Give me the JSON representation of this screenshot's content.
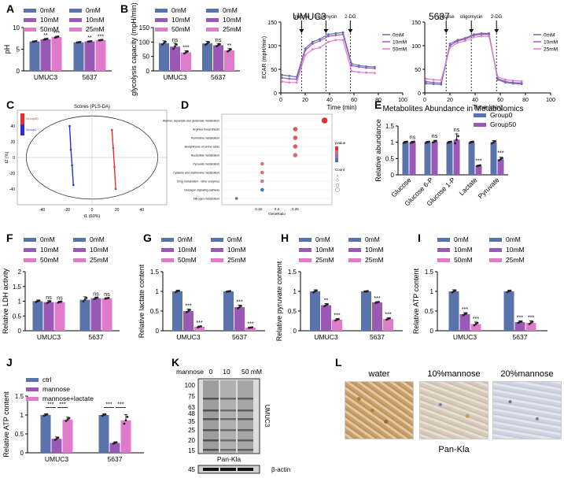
{
  "colors": {
    "c1": "#5a73ad",
    "c2": "#9b59b6",
    "c3": "#e07bcc",
    "g0": "#5a73ad",
    "g50": "#9b59b6",
    "red": "#e0312f",
    "blue": "#2b2bd8"
  },
  "panels": {
    "A": {
      "letter": "A"
    },
    "B": {
      "letter": "B"
    },
    "C": {
      "letter": "C",
      "title": "Scores (PLS-DA)"
    },
    "D": {
      "letter": "D"
    },
    "E": {
      "letter": "E"
    },
    "F": {
      "letter": "F"
    },
    "G": {
      "letter": "G"
    },
    "H": {
      "letter": "H"
    },
    "I": {
      "letter": "I"
    },
    "J": {
      "letter": "J"
    },
    "K": {
      "letter": "K"
    },
    "L": {
      "letter": "L"
    }
  },
  "chart_data": [
    {
      "id": "A",
      "type": "bar",
      "categories": [
        "UMUC3",
        "5637"
      ],
      "legend_left": [
        "0mM",
        "10mM",
        "50mM"
      ],
      "legend_right": [
        "0mM",
        "10mM",
        "25mM"
      ],
      "series": [
        {
          "values": [
            6.8,
            6.6
          ]
        },
        {
          "values": [
            7.3,
            6.8
          ]
        },
        {
          "values": [
            7.8,
            7.1
          ]
        }
      ],
      "errors": [
        [
          0.1,
          0.1
        ],
        [
          0.2,
          0.1
        ],
        [
          0.2,
          0.1
        ]
      ],
      "sig": [
        [
          "",
          ""
        ],
        [
          "**",
          "**"
        ],
        [
          "***",
          "***"
        ]
      ],
      "ylabel": "pH",
      "ylim": [
        0,
        10
      ],
      "yticks": [
        0,
        5,
        10
      ]
    },
    {
      "id": "B",
      "type": "bar",
      "categories": [
        "UMUC3",
        "5637"
      ],
      "legend_left": [
        "0mM",
        "10mM",
        "50mM"
      ],
      "legend_right": [
        "0mM",
        "10mM",
        "25mM"
      ],
      "series": [
        {
          "values": [
            96,
            95
          ]
        },
        {
          "values": [
            84,
            89
          ]
        },
        {
          "values": [
            64,
            71
          ]
        }
      ],
      "errors": [
        [
          8,
          7
        ],
        [
          12,
          6
        ],
        [
          6,
          6
        ]
      ],
      "sig": [
        [
          "",
          ""
        ],
        [
          "ns",
          "ns"
        ],
        [
          "***",
          "**"
        ]
      ],
      "ylabel": "glycolysis capacity (mpH/min)",
      "ylim": [
        0,
        150
      ],
      "yticks": [
        0,
        50,
        100,
        150
      ]
    },
    {
      "id": "ECAR1",
      "type": "line",
      "title": "UMUC3",
      "xlabel": "Time (min)",
      "ylabel": "ECAR (mpH/min)",
      "xlim": [
        0,
        100
      ],
      "ylim": [
        0,
        150
      ],
      "xticks": [
        0,
        20,
        40,
        60,
        80,
        100
      ],
      "yticks": [
        0,
        50,
        100,
        150
      ],
      "injections": [
        {
          "label": "glucose",
          "x": 17
        },
        {
          "label": "oligomycin",
          "x": 37
        },
        {
          "label": "2-DG",
          "x": 57
        }
      ],
      "legend": [
        "0mM",
        "10mM",
        "50mM"
      ],
      "x": [
        1,
        7,
        13,
        20,
        26,
        32,
        39,
        45,
        51,
        58,
        64,
        70,
        77
      ],
      "series": [
        {
          "values": [
            38,
            36,
            34,
            94,
            108,
            114,
            124,
            126,
            128,
            62,
            58,
            56,
            55
          ]
        },
        {
          "values": [
            32,
            30,
            29,
            90,
            104,
            110,
            120,
            122,
            124,
            58,
            55,
            53,
            52
          ]
        },
        {
          "values": [
            24,
            22,
            22,
            80,
            92,
            96,
            108,
            112,
            112,
            46,
            44,
            43,
            42
          ]
        }
      ]
    },
    {
      "id": "ECAR2",
      "type": "line",
      "title": "5637",
      "xlabel": "Time (min)",
      "ylabel": "",
      "xlim": [
        0,
        100
      ],
      "ylim": [
        0,
        150
      ],
      "xticks": [
        0,
        20,
        40,
        60,
        80,
        100
      ],
      "yticks": [
        0,
        50,
        100,
        150
      ],
      "injections": [
        {
          "label": "glucose",
          "x": 17
        },
        {
          "label": "oligomycin",
          "x": 37
        },
        {
          "label": "2-DG",
          "x": 57
        }
      ],
      "legend": [
        "0mM",
        "10mM",
        "25mM"
      ],
      "x": [
        1,
        7,
        13,
        20,
        26,
        32,
        39,
        45,
        51,
        58,
        64,
        70,
        77
      ],
      "series": [
        {
          "values": [
            20,
            19,
            18,
            100,
            110,
            114,
            122,
            124,
            124,
            28,
            22,
            20,
            19
          ]
        },
        {
          "values": [
            24,
            22,
            21,
            104,
            112,
            116,
            124,
            126,
            126,
            30,
            24,
            22,
            21
          ]
        },
        {
          "values": [
            30,
            28,
            27,
            96,
            106,
            110,
            118,
            120,
            120,
            34,
            28,
            26,
            25
          ]
        }
      ]
    },
    {
      "id": "C",
      "type": "scatter",
      "title": "Scores (PLS-DA)",
      "xlabel": "t1 (60%)",
      "ylabel": "t2 (%)",
      "xlim": [
        -60,
        60
      ],
      "ylim": [
        -60,
        60
      ],
      "xticks": [
        -40,
        -20,
        0,
        20,
        40
      ],
      "yticks": [
        -40,
        -20,
        0,
        20,
        40
      ],
      "legend": [
        "Group0",
        "Group50"
      ],
      "groups": [
        {
          "x": [
            -18,
            -17,
            -16,
            -15
          ],
          "y": [
            40,
            10,
            -10,
            -35
          ]
        },
        {
          "x": [
            16,
            17,
            18,
            19
          ],
          "y": [
            35,
            12,
            -12,
            -40
          ]
        }
      ]
    },
    {
      "id": "D",
      "type": "scatter",
      "xlabel": "GeneRatio",
      "pathways": [
        "Alanine, aspartate and glutamate metabolism",
        "Arginine biosynthesis",
        "Pyrimidine metabolism",
        "Biosynthesis of amino acids",
        "Nucleotide metabolism",
        "Pyruvate metabolism",
        "Cysteine and methionine metabolism",
        "Drug metabolism - other enzymes",
        "Glucagon signaling pathway",
        "Nitrogen metabolism"
      ],
      "x": [
        0.33,
        0.25,
        0.25,
        0.25,
        0.25,
        0.16,
        0.16,
        0.16,
        0.16,
        0.09
      ],
      "sizes": [
        3,
        2,
        2,
        2,
        2,
        1.5,
        1.5,
        1.5,
        1.5,
        1
      ],
      "colors": [
        "#e0312f",
        "#e05555",
        "#e05a5a",
        "#e06060",
        "#e06a6a",
        "#d97070",
        "#cf7575",
        "#c47b7b",
        "#4a72c4",
        "#6e6e6e"
      ],
      "xlim": [
        0.05,
        0.35
      ],
      "xticks": [
        0.15,
        0.2,
        0.25
      ],
      "legend_title_1": "pvalue",
      "legend_title_2": "Count"
    },
    {
      "id": "E",
      "type": "bar",
      "title": "Metabolites Abundance in Metabolomics",
      "categories": [
        "Glucose",
        "Glucose 6-P",
        "Glucose 1-P",
        "Lactate",
        "Pyruvate"
      ],
      "legend": [
        "Group0",
        "Group50"
      ],
      "series": [
        {
          "values": [
            1.0,
            1.0,
            1.0,
            1.0,
            1.0
          ]
        },
        {
          "values": [
            1.0,
            1.02,
            1.08,
            0.28,
            0.48
          ]
        }
      ],
      "errors": [
        [
          0.03,
          0.03,
          0.03,
          0.03,
          0.05
        ],
        [
          0.03,
          0.04,
          0.18,
          0.02,
          0.06
        ]
      ],
      "sig": [
        "ns",
        "ns",
        "ns",
        "***",
        "***"
      ],
      "ylabel": "Relative abundance",
      "ylim": [
        0,
        1.5
      ],
      "yticks": [
        0.0,
        0.5,
        1.0,
        1.5
      ]
    },
    {
      "id": "F",
      "type": "bar",
      "categories": [
        "UMUC3",
        "5637"
      ],
      "legend_left": [
        "0mM",
        "10mM",
        "50mM"
      ],
      "legend_right": [
        "0mM",
        "10mM",
        "25mM"
      ],
      "series": [
        {
          "values": [
            1.0,
            1.05
          ]
        },
        {
          "values": [
            0.97,
            1.1
          ]
        },
        {
          "values": [
            0.97,
            1.1
          ]
        }
      ],
      "errors": [
        [
          0.04,
          0.1
        ],
        [
          0.05,
          0.04
        ],
        [
          0.03,
          0.02
        ]
      ],
      "sig": [
        [
          "",
          ""
        ],
        [
          "ns",
          "ns"
        ],
        [
          "ns",
          "ns"
        ]
      ],
      "ylabel": "Relative LDH activity",
      "ylim": [
        0,
        2.0
      ],
      "yticks": [
        0.0,
        0.5,
        1.0,
        1.5,
        2.0
      ]
    },
    {
      "id": "G",
      "type": "bar",
      "categories": [
        "UMUC3",
        "5637"
      ],
      "legend_left": [
        "0mM",
        "10mM",
        "50mM"
      ],
      "legend_right": [
        "0mM",
        "10mM",
        "25mM"
      ],
      "series": [
        {
          "values": [
            1.0,
            1.0
          ]
        },
        {
          "values": [
            0.5,
            0.6
          ]
        },
        {
          "values": [
            0.1,
            0.08
          ]
        }
      ],
      "errors": [
        [
          0.03,
          0.01
        ],
        [
          0.05,
          0.05
        ],
        [
          0.02,
          0.01
        ]
      ],
      "sig": [
        [
          "",
          ""
        ],
        [
          "***",
          "***"
        ],
        [
          "***",
          "***"
        ]
      ],
      "ylabel": "Relative lactate content",
      "ylim": [
        0,
        1.5
      ],
      "yticks": [
        0.0,
        0.5,
        1.0,
        1.5
      ]
    },
    {
      "id": "H",
      "type": "bar",
      "categories": [
        "UMUC3",
        "5637"
      ],
      "legend_left": [
        "0mM",
        "10mM",
        "25mM"
      ],
      "legend_right": [
        "0mM",
        "10mM",
        "25mM"
      ],
      "series": [
        {
          "values": [
            1.0,
            1.0
          ]
        },
        {
          "values": [
            0.65,
            0.72
          ]
        },
        {
          "values": [
            0.28,
            0.3
          ]
        }
      ],
      "errors": [
        [
          0.04,
          0.01
        ],
        [
          0.04,
          0.02
        ],
        [
          0.03,
          0.03
        ]
      ],
      "sig": [
        [
          "",
          ""
        ],
        [
          "**",
          "***"
        ],
        [
          "***",
          "***"
        ]
      ],
      "ylabel": "Relative pyruvate content",
      "ylim": [
        0,
        1.5
      ],
      "yticks": [
        0.0,
        0.5,
        1.0,
        1.5
      ]
    },
    {
      "id": "I",
      "type": "bar",
      "categories": [
        "UMUC3",
        "5637"
      ],
      "legend_left": [
        "0mM",
        "10mM",
        "50mM"
      ],
      "legend_right": [
        "0mM",
        "10mM",
        "25mM"
      ],
      "series": [
        {
          "values": [
            1.0,
            1.0
          ]
        },
        {
          "values": [
            0.42,
            0.22
          ]
        },
        {
          "values": [
            0.17,
            0.2
          ]
        }
      ],
      "errors": [
        [
          0.04,
          0.03
        ],
        [
          0.04,
          0.03
        ],
        [
          0.05,
          0.05
        ]
      ],
      "sig": [
        [
          "",
          ""
        ],
        [
          "***",
          "***"
        ],
        [
          "***",
          "***"
        ]
      ],
      "ylabel": "Relative ATP content",
      "ylim": [
        0,
        1.5
      ],
      "yticks": [
        0.0,
        0.5,
        1.0,
        1.5
      ]
    },
    {
      "id": "J",
      "type": "bar",
      "categories": [
        "UMUC3",
        "5637"
      ],
      "legend": [
        "ctrl",
        "mannose",
        "mannose+lactate"
      ],
      "series": [
        {
          "values": [
            1.0,
            1.0
          ]
        },
        {
          "values": [
            0.37,
            0.26
          ]
        },
        {
          "values": [
            0.88,
            0.86
          ]
        }
      ],
      "errors": [
        [
          0.03,
          0.03
        ],
        [
          0.05,
          0.03
        ],
        [
          0.06,
          0.15
        ]
      ],
      "brackets": [
        [
          "***",
          "***"
        ],
        [
          "***",
          "***"
        ]
      ],
      "ylabel": "Relative ATP content",
      "ylim": [
        0,
        1.5
      ],
      "yticks": [
        0.0,
        0.5,
        1.0,
        1.5
      ]
    }
  ],
  "blot": {
    "mannose_label": "mannose",
    "lanes": [
      "0",
      "10",
      "50 mM"
    ],
    "markers": [
      "100",
      "75",
      "63",
      "48",
      "35",
      "25",
      "20",
      "15"
    ],
    "actin_marker": "45",
    "side_label": "UMUC3",
    "caption": "Pan-Kla",
    "actin_caption": "β-actin"
  },
  "ihc": {
    "labels": [
      "water",
      "10%mannose",
      "20%mannose"
    ],
    "caption": "Pan-Kla"
  }
}
